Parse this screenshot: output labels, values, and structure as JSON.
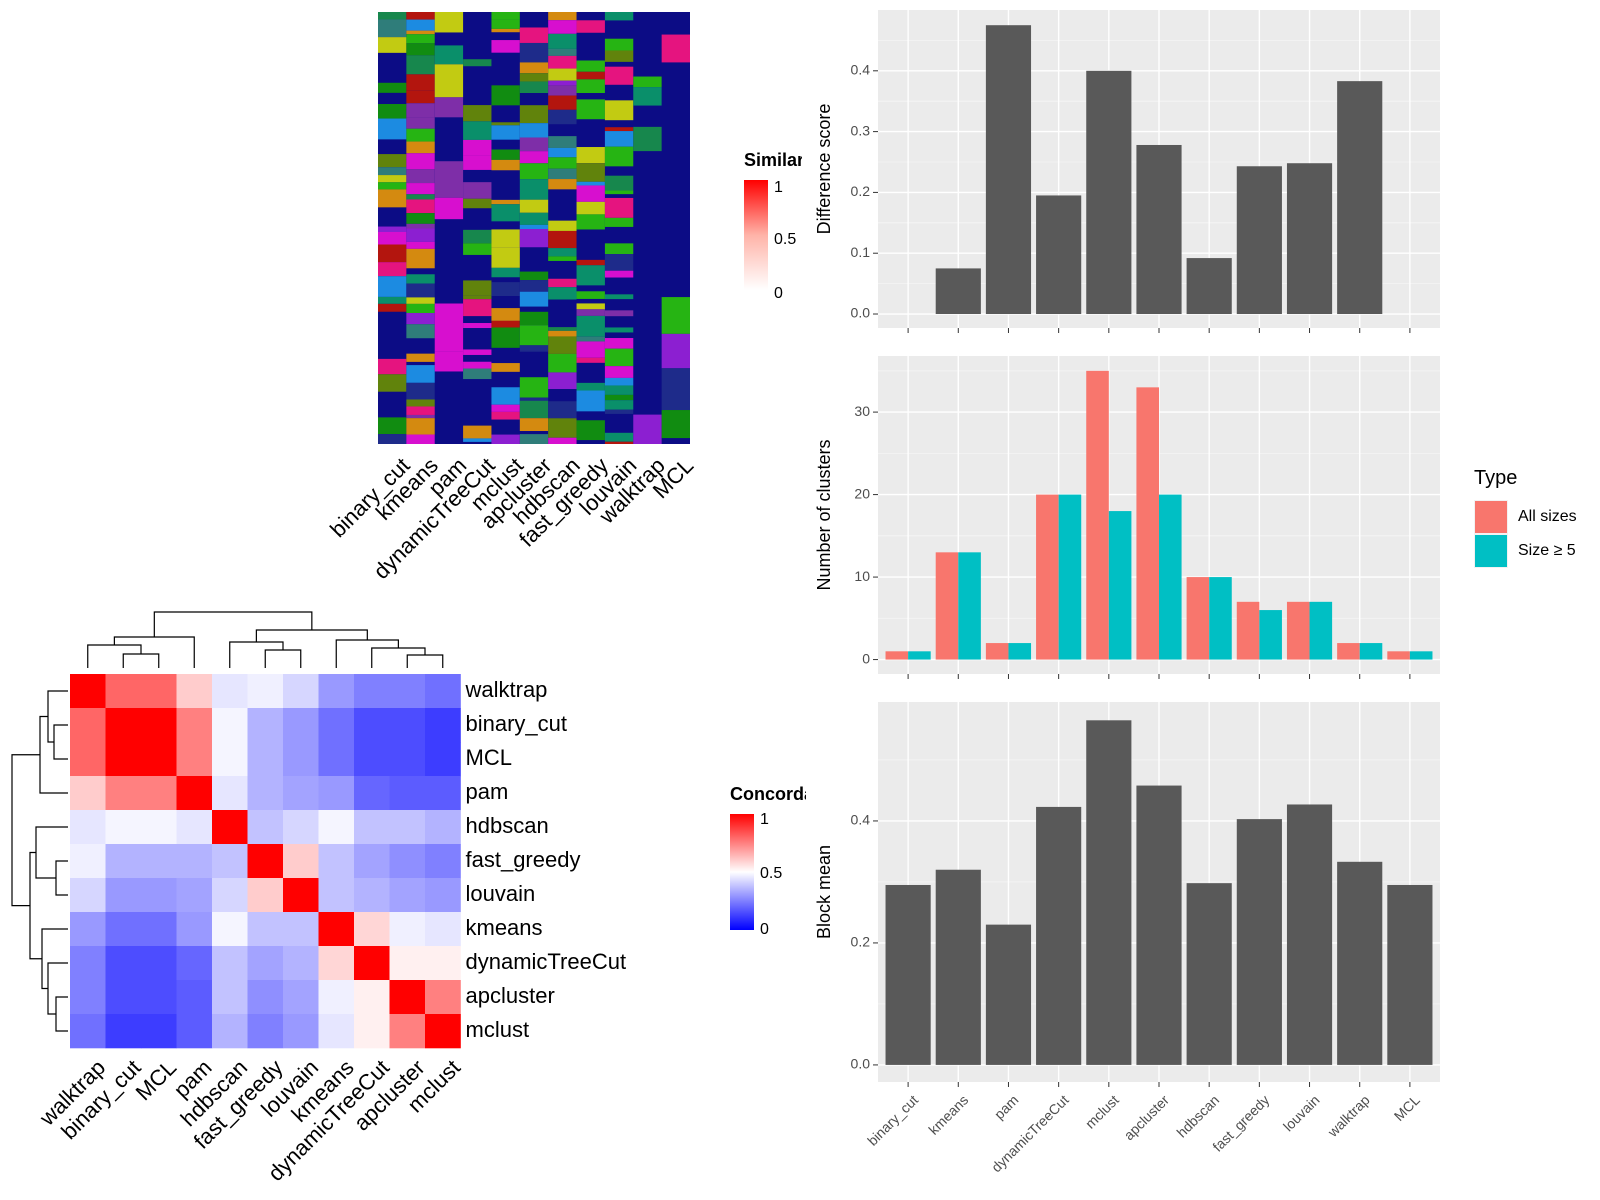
{
  "chart_data": [
    {
      "type": "heatmap",
      "panel": "similarity-heatmap",
      "legend_title": "Similarity",
      "legend_ticks": [
        "1",
        "0.5",
        "0"
      ],
      "colors": {
        "high": "#ff0000",
        "low": "#ffffff"
      },
      "annotation_columns": [
        "binary_cut",
        "kmeans",
        "pam",
        "dynamicTreeCut",
        "mclust",
        "apcluster",
        "hdbscan",
        "fast_greedy",
        "louvain",
        "walktrap",
        "MCL"
      ]
    },
    {
      "type": "heatmap",
      "panel": "concordance-heatmap",
      "legend_title": "Concordance",
      "legend_ticks": [
        "1",
        "0.5",
        "0"
      ],
      "colors": {
        "high": "#ff0000",
        "mid": "#ffffff",
        "low": "#0000ff"
      },
      "row_labels": [
        "walktrap",
        "binary_cut",
        "MCL",
        "pam",
        "hdbscan",
        "fast_greedy",
        "louvain",
        "kmeans",
        "dynamicTreeCut",
        "apcluster",
        "mclust"
      ],
      "col_labels": [
        "walktrap",
        "binary_cut",
        "MCL",
        "pam",
        "hdbscan",
        "fast_greedy",
        "louvain",
        "kmeans",
        "dynamicTreeCut",
        "apcluster",
        "mclust"
      ],
      "values": [
        [
          1.0,
          0.8,
          0.8,
          0.6,
          0.45,
          0.47,
          0.42,
          0.3,
          0.25,
          0.25,
          0.22
        ],
        [
          0.8,
          1.0,
          1.0,
          0.75,
          0.48,
          0.35,
          0.3,
          0.22,
          0.15,
          0.15,
          0.12
        ],
        [
          0.8,
          1.0,
          1.0,
          0.75,
          0.48,
          0.35,
          0.3,
          0.22,
          0.15,
          0.15,
          0.12
        ],
        [
          0.6,
          0.75,
          0.75,
          1.0,
          0.45,
          0.35,
          0.32,
          0.3,
          0.2,
          0.18,
          0.18
        ],
        [
          0.45,
          0.48,
          0.48,
          0.45,
          1.0,
          0.38,
          0.42,
          0.48,
          0.38,
          0.38,
          0.35
        ],
        [
          0.47,
          0.35,
          0.35,
          0.35,
          0.38,
          1.0,
          0.6,
          0.38,
          0.32,
          0.28,
          0.25
        ],
        [
          0.42,
          0.3,
          0.3,
          0.32,
          0.42,
          0.6,
          1.0,
          0.38,
          0.35,
          0.32,
          0.3
        ],
        [
          0.3,
          0.22,
          0.22,
          0.3,
          0.48,
          0.38,
          0.38,
          1.0,
          0.58,
          0.47,
          0.45
        ],
        [
          0.25,
          0.15,
          0.15,
          0.2,
          0.38,
          0.32,
          0.35,
          0.58,
          1.0,
          0.53,
          0.53
        ],
        [
          0.25,
          0.15,
          0.15,
          0.18,
          0.38,
          0.28,
          0.32,
          0.47,
          0.53,
          1.0,
          0.75
        ],
        [
          0.22,
          0.12,
          0.12,
          0.18,
          0.35,
          0.25,
          0.3,
          0.45,
          0.53,
          0.75,
          1.0
        ]
      ]
    },
    {
      "type": "bar",
      "panel": "difference-score",
      "categories": [
        "binary_cut",
        "kmeans",
        "pam",
        "dynamicTreeCut",
        "mclust",
        "apcluster",
        "hdbscan",
        "fast_greedy",
        "louvain",
        "walktrap",
        "MCL"
      ],
      "values": [
        0,
        0.075,
        0.475,
        0.195,
        0.4,
        0.278,
        0.092,
        0.243,
        0.248,
        0.383,
        0
      ],
      "ylabel": "Difference score",
      "ylim": [
        -0.023,
        0.5
      ],
      "yticks": [
        0.0,
        0.1,
        0.2,
        0.3,
        0.4
      ],
      "bar_color": "#595959"
    },
    {
      "type": "bar",
      "panel": "number-of-clusters",
      "categories": [
        "binary_cut",
        "kmeans",
        "pam",
        "dynamicTreeCut",
        "mclust",
        "apcluster",
        "hdbscan",
        "fast_greedy",
        "louvain",
        "walktrap",
        "MCL"
      ],
      "series": [
        {
          "name": "All sizes",
          "color": "#f8766d",
          "values": [
            1,
            13,
            2,
            20,
            35,
            33,
            10,
            7,
            7,
            2,
            1
          ]
        },
        {
          "name": "Size ≥ 5",
          "color": "#00bfc4",
          "values": [
            1,
            13,
            2,
            20,
            18,
            20,
            10,
            6,
            7,
            2,
            1
          ]
        }
      ],
      "ylabel": "Number of clusters",
      "ylim": [
        -1.75,
        36.8
      ],
      "yticks": [
        0,
        10,
        20,
        30
      ],
      "legend_title": "Type",
      "legend_position": "right"
    },
    {
      "type": "bar",
      "panel": "block-mean",
      "categories": [
        "binary_cut",
        "kmeans",
        "pam",
        "dynamicTreeCut",
        "mclust",
        "apcluster",
        "hdbscan",
        "fast_greedy",
        "louvain",
        "walktrap",
        "MCL"
      ],
      "values": [
        0.295,
        0.32,
        0.23,
        0.423,
        0.565,
        0.458,
        0.298,
        0.403,
        0.427,
        0.333,
        0.295
      ],
      "ylabel": "Block mean",
      "ylim": [
        -0.028,
        0.595
      ],
      "yticks": [
        0.0,
        0.2,
        0.4
      ],
      "bar_color": "#595959"
    }
  ]
}
